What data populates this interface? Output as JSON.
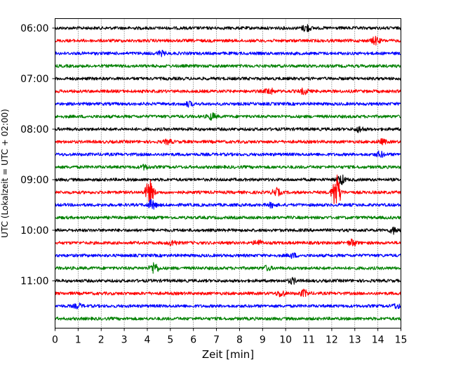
{
  "chart_data": {
    "type": "line",
    "title": "",
    "xlabel": "Zeit  [min]",
    "ylabel": "UTC (Lokalzeit = UTC + 02:00)",
    "xlim": [
      0,
      15
    ],
    "x_ticks": [
      "0",
      "1",
      "2",
      "3",
      "4",
      "5",
      "6",
      "7",
      "8",
      "9",
      "10",
      "11",
      "12",
      "13",
      "14",
      "15"
    ],
    "y_ticks": [
      "06:00",
      "07:00",
      "08:00",
      "09:00",
      "10:00",
      "11:00"
    ],
    "grid": "vertical dotted lines at each minute",
    "row_interval_minutes": 15,
    "series_colors": [
      "#000000",
      "#ff0000",
      "#0000ff",
      "#008000"
    ],
    "rows": [
      {
        "start": "06:00",
        "color": "#000000",
        "events": [
          {
            "t": 10.9,
            "amp": 0.35
          }
        ]
      },
      {
        "start": "06:15",
        "color": "#ff0000",
        "events": [
          {
            "t": 13.9,
            "amp": 0.35
          }
        ]
      },
      {
        "start": "06:30",
        "color": "#0000ff",
        "events": [
          {
            "t": 4.6,
            "amp": 0.2
          }
        ]
      },
      {
        "start": "06:45",
        "color": "#008000",
        "events": []
      },
      {
        "start": "07:00",
        "color": "#000000",
        "events": []
      },
      {
        "start": "07:15",
        "color": "#ff0000",
        "events": [
          {
            "t": 9.3,
            "amp": 0.3
          },
          {
            "t": 10.8,
            "amp": 0.25
          }
        ]
      },
      {
        "start": "07:30",
        "color": "#0000ff",
        "events": [
          {
            "t": 5.8,
            "amp": 0.2
          }
        ]
      },
      {
        "start": "07:45",
        "color": "#008000",
        "events": [
          {
            "t": 6.8,
            "amp": 0.3
          }
        ]
      },
      {
        "start": "08:00",
        "color": "#000000",
        "events": [
          {
            "t": 13.2,
            "amp": 0.25
          }
        ]
      },
      {
        "start": "08:15",
        "color": "#ff0000",
        "events": [
          {
            "t": 4.9,
            "amp": 0.2
          },
          {
            "t": 14.2,
            "amp": 0.2
          }
        ]
      },
      {
        "start": "08:30",
        "color": "#0000ff",
        "events": [
          {
            "t": 14.1,
            "amp": 0.25
          }
        ]
      },
      {
        "start": "08:45",
        "color": "#008000",
        "events": [
          {
            "t": 3.9,
            "amp": 0.2
          }
        ]
      },
      {
        "start": "09:00",
        "color": "#000000",
        "events": [
          {
            "t": 12.4,
            "amp": 0.45
          }
        ]
      },
      {
        "start": "09:15",
        "color": "#ff0000",
        "events": [
          {
            "t": 4.1,
            "amp": 1.2
          },
          {
            "t": 9.6,
            "amp": 0.35
          },
          {
            "t": 12.2,
            "amp": 1.8
          }
        ]
      },
      {
        "start": "09:30",
        "color": "#0000ff",
        "events": [
          {
            "t": 4.2,
            "amp": 0.45
          },
          {
            "t": 9.4,
            "amp": 0.2
          }
        ]
      },
      {
        "start": "09:45",
        "color": "#008000",
        "events": []
      },
      {
        "start": "10:00",
        "color": "#000000",
        "events": [
          {
            "t": 14.7,
            "amp": 0.3
          }
        ]
      },
      {
        "start": "10:15",
        "color": "#ff0000",
        "events": [
          {
            "t": 5.1,
            "amp": 0.25
          },
          {
            "t": 8.8,
            "amp": 0.25
          },
          {
            "t": 12.9,
            "amp": 0.3
          }
        ]
      },
      {
        "start": "10:30",
        "color": "#0000ff",
        "events": [
          {
            "t": 10.3,
            "amp": 0.2
          }
        ]
      },
      {
        "start": "10:45",
        "color": "#008000",
        "events": [
          {
            "t": 4.3,
            "amp": 0.55
          },
          {
            "t": 9.2,
            "amp": 0.2
          }
        ]
      },
      {
        "start": "11:00",
        "color": "#000000",
        "events": [
          {
            "t": 10.3,
            "amp": 0.25
          }
        ]
      },
      {
        "start": "11:15",
        "color": "#ff0000",
        "events": [
          {
            "t": 9.8,
            "amp": 0.3
          },
          {
            "t": 10.8,
            "amp": 0.3
          }
        ]
      },
      {
        "start": "11:30",
        "color": "#0000ff",
        "events": [
          {
            "t": 1.0,
            "amp": 0.2
          },
          {
            "t": 14.8,
            "amp": 0.2
          }
        ]
      },
      {
        "start": "11:45",
        "color": "#008000",
        "events": []
      }
    ]
  }
}
